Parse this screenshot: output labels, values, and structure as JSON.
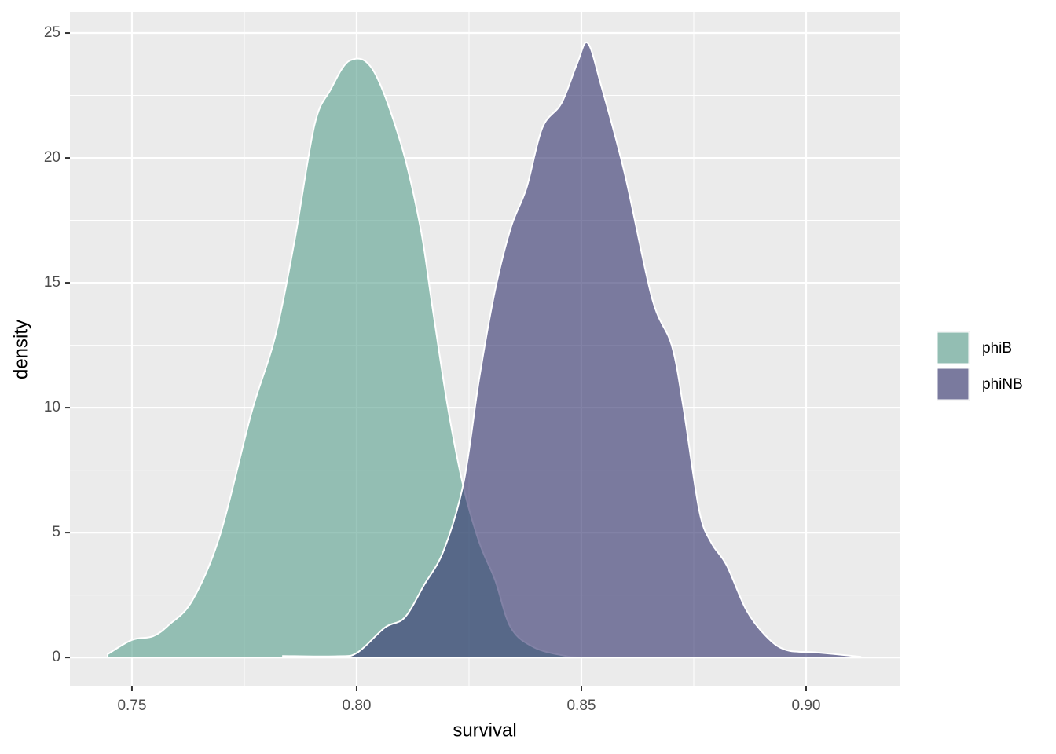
{
  "chart_data": {
    "type": "density",
    "x_label": "survival",
    "y_label": "density",
    "xlim": [
      0.7362,
      0.9208
    ],
    "ylim": [
      -1.16,
      25.85
    ],
    "xticks": [
      {
        "value": 0.75,
        "label": "0.75"
      },
      {
        "value": 0.8,
        "label": "0.80"
      },
      {
        "value": 0.85,
        "label": "0.85"
      },
      {
        "value": 0.9,
        "label": "0.90"
      }
    ],
    "yticks": [
      0,
      5,
      10,
      15,
      20,
      25
    ],
    "xminor": [
      0.775,
      0.825,
      0.875
    ],
    "yminor": [
      2.5,
      7.5,
      12.5,
      17.5,
      22.5
    ],
    "grid": true,
    "alpha": 0.6,
    "legend_position": "right",
    "series": [
      {
        "name": "phiB",
        "color": "#58A08E",
        "x": [
          0.7446,
          0.75,
          0.7547,
          0.7582,
          0.7635,
          0.7696,
          0.7766,
          0.7818,
          0.7862,
          0.7906,
          0.7941,
          0.7985,
          0.8037,
          0.8098,
          0.8142,
          0.8168,
          0.8203,
          0.8238,
          0.8273,
          0.8308,
          0.8343,
          0.8395,
          0.8465,
          0.85
        ],
        "values": [
          0.13,
          0.7,
          0.85,
          1.3,
          2.3,
          4.9,
          9.8,
          12.8,
          16.7,
          21.3,
          22.7,
          23.9,
          23.5,
          20.6,
          17.2,
          14.1,
          10.0,
          6.8,
          4.6,
          3.1,
          1.2,
          0.4,
          0.06,
          0
        ]
      },
      {
        "name": "phiNB",
        "color": "#2F2F6B",
        "x": [
          0.7836,
          0.7958,
          0.8002,
          0.8063,
          0.8107,
          0.815,
          0.8194,
          0.8238,
          0.8273,
          0.8308,
          0.8343,
          0.8378,
          0.8413,
          0.8456,
          0.8491,
          0.8514,
          0.8544,
          0.8596,
          0.8657,
          0.8701,
          0.8727,
          0.8762,
          0.8789,
          0.8823,
          0.8867,
          0.8911,
          0.8955,
          0.9024,
          0.9121
        ],
        "values": [
          0.06,
          0.05,
          0.2,
          1.2,
          1.6,
          2.9,
          4.3,
          7.0,
          11.2,
          14.7,
          17.2,
          18.8,
          21.2,
          22.2,
          23.8,
          24.6,
          22.9,
          19.4,
          14.4,
          12.5,
          10.0,
          5.9,
          4.6,
          3.7,
          1.9,
          0.85,
          0.3,
          0.2,
          0.03
        ]
      }
    ]
  }
}
